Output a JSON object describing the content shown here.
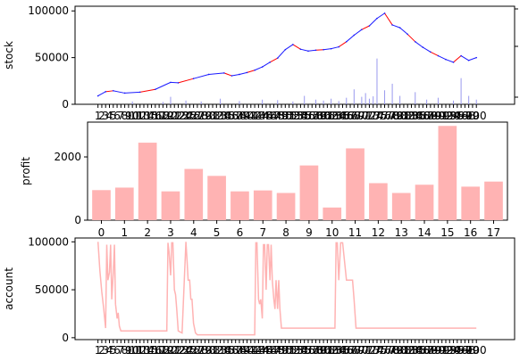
{
  "chart_data": [
    {
      "type": "line",
      "ylabel": "stock",
      "ylim": [
        0,
        105000
      ],
      "yticks": [
        0,
        50000,
        100000
      ],
      "xlim": [
        -5,
        110
      ],
      "xtick_labels": [
        "1",
        "2",
        "3",
        "4",
        "5",
        "6",
        "7",
        "8",
        "9",
        "10",
        "11",
        "12",
        "13",
        "14",
        "15",
        "16",
        "17",
        "18",
        "19",
        "20",
        "21",
        "22",
        "23",
        "24",
        "25",
        "26",
        "27",
        "28",
        "29",
        "30",
        "31",
        "32",
        "33",
        "34",
        "35",
        "36",
        "37",
        "38",
        "39",
        "40",
        "41",
        "42",
        "43",
        "44",
        "45",
        "46",
        "47",
        "48",
        "49",
        "50",
        "51",
        "52",
        "53",
        "54",
        "55",
        "56",
        "57",
        "58",
        "59",
        "60",
        "61",
        "62",
        "63",
        "64",
        "65",
        "66",
        "67",
        "68",
        "69",
        "70",
        "71",
        "72",
        "73",
        "74",
        "75",
        "76",
        "77",
        "78",
        "79",
        "80",
        "81",
        "82",
        "83",
        "84",
        "85",
        "86",
        "87",
        "88",
        "89",
        "90",
        "91",
        "92",
        "93",
        "94",
        "95",
        "96",
        "97",
        "98",
        "99",
        "100"
      ],
      "colors": {
        "price": "#1a1aff",
        "highlight": "#ff0000",
        "volume": "#9999ee"
      },
      "series": [
        {
          "x": [
            1,
            3,
            5,
            8,
            12,
            16,
            20,
            22,
            26,
            30,
            34,
            36,
            38,
            40,
            42,
            44,
            46,
            48,
            50,
            52,
            54,
            56,
            58,
            60,
            62,
            64,
            66,
            68,
            70,
            72,
            74,
            76,
            78,
            80,
            82,
            84,
            86,
            88,
            90,
            92,
            94,
            96,
            98,
            100
          ],
          "values": [
            9000,
            13500,
            14500,
            12000,
            13000,
            16000,
            23500,
            23000,
            27500,
            32000,
            33500,
            30500,
            32000,
            34000,
            36500,
            40000,
            45000,
            49500,
            58500,
            64000,
            59000,
            57000,
            58000,
            58500,
            59500,
            61500,
            67000,
            74000,
            80000,
            84000,
            92000,
            97500,
            85000,
            82000,
            75000,
            67000,
            61000,
            56000,
            52000,
            48000,
            45000,
            52000,
            47000,
            50000
          ]
        }
      ],
      "volume": {
        "x": [
          10,
          18,
          20,
          24,
          28,
          33,
          38,
          44,
          48,
          52,
          55,
          58,
          60,
          62,
          64,
          66,
          68,
          70,
          71,
          72,
          73,
          74,
          76,
          78,
          80,
          84,
          87,
          90,
          94,
          96,
          98,
          100
        ],
        "values": [
          3000,
          2500,
          8000,
          4000,
          3000,
          6000,
          3500,
          5000,
          4500,
          3000,
          9000,
          5000,
          4000,
          6000,
          3500,
          7000,
          16000,
          8000,
          12000,
          6000,
          8500,
          49000,
          15000,
          22000,
          9000,
          13000,
          5000,
          7000,
          4000,
          28000,
          9000,
          5000
        ]
      }
    },
    {
      "type": "bar",
      "ylabel": "profit",
      "ylim": [
        0,
        3100
      ],
      "yticks": [
        0,
        2000
      ],
      "categories": [
        "0",
        "1",
        "2",
        "3",
        "4",
        "5",
        "6",
        "7",
        "8",
        "9",
        "10",
        "11",
        "12",
        "13",
        "14",
        "15",
        "16",
        "17"
      ],
      "values": [
        950,
        1030,
        2450,
        910,
        1620,
        1400,
        910,
        940,
        860,
        1730,
        400,
        2270,
        1170,
        860,
        1120,
        2980,
        1060,
        1220
      ],
      "colors": {
        "bar": "#ffb3b3"
      }
    },
    {
      "type": "line",
      "ylabel": "account",
      "ylim": [
        -2000,
        104000
      ],
      "yticks": [
        0,
        50000,
        100000
      ],
      "xlim": [
        -5,
        110
      ],
      "xtick_labels": [
        "1",
        "2",
        "3",
        "4",
        "5",
        "6",
        "7",
        "8",
        "9",
        "10",
        "11",
        "12",
        "13",
        "14",
        "15",
        "16",
        "17",
        "18",
        "19",
        "20",
        "21",
        "22",
        "23",
        "24",
        "25",
        "26",
        "27",
        "28",
        "29",
        "30",
        "31",
        "32",
        "33",
        "34",
        "35",
        "36",
        "37",
        "38",
        "39",
        "40",
        "41",
        "42",
        "43",
        "44",
        "45",
        "46",
        "47",
        "48",
        "49",
        "50",
        "51",
        "52",
        "53",
        "54",
        "55",
        "56",
        "57",
        "58",
        "59",
        "60",
        "61",
        "62",
        "63",
        "64",
        "65",
        "66",
        "67",
        "68",
        "69",
        "70",
        "71",
        "72",
        "73",
        "74",
        "75",
        "76",
        "77",
        "78",
        "79",
        "80",
        "81",
        "82",
        "83",
        "84",
        "85",
        "86",
        "87",
        "88",
        "89",
        "90",
        "91",
        "92",
        "93",
        "94",
        "95",
        "96",
        "97",
        "98",
        "99",
        "100"
      ],
      "colors": {
        "line": "#ffb3b3"
      },
      "series": [
        {
          "x": [
            1,
            1.5,
            2,
            2.5,
            3,
            3.3,
            3.6,
            4,
            4.3,
            4.6,
            5,
            5.3,
            5.6,
            6,
            6.3,
            6.6,
            7,
            7.5,
            8,
            12,
            16,
            19,
            19.3,
            19.6,
            20,
            20.3,
            20.6,
            21,
            21.3,
            21.6,
            22,
            23,
            24,
            24.3,
            24.6,
            25,
            25.3,
            25.6,
            26,
            26.5,
            27,
            30,
            35,
            40,
            42,
            42.3,
            42.6,
            43,
            43.3,
            43.6,
            44,
            44.3,
            44.6,
            45,
            45.3,
            45.6,
            46,
            46.3,
            46.6,
            47,
            47.3,
            47.6,
            48,
            48.3,
            48.6,
            49,
            50,
            55,
            60,
            63,
            63.3,
            63.6,
            64,
            64.5,
            65,
            66,
            67,
            67.3,
            67.6,
            68,
            68.5,
            69,
            70,
            75,
            80,
            85,
            90,
            95,
            100
          ],
          "values": [
            100000,
            70000,
            48000,
            30000,
            10000,
            97000,
            60000,
            68000,
            97000,
            40000,
            68000,
            97000,
            35000,
            20000,
            26000,
            12000,
            7000,
            7000,
            7000,
            7000,
            7000,
            7000,
            99000,
            90000,
            65000,
            99000,
            99000,
            50000,
            45000,
            30000,
            7000,
            5000,
            100000,
            80000,
            60000,
            60000,
            40000,
            40000,
            15000,
            5000,
            3000,
            3000,
            3000,
            3000,
            3000,
            99000,
            99000,
            40000,
            35000,
            40000,
            20000,
            97000,
            97000,
            50000,
            97000,
            97000,
            60000,
            97000,
            60000,
            40000,
            30000,
            60000,
            30000,
            60000,
            30000,
            10000,
            10000,
            10000,
            10000,
            10000,
            99000,
            99000,
            60000,
            99000,
            99000,
            60000,
            60000,
            60000,
            60000,
            40000,
            10000,
            10000,
            10000,
            10000,
            10000,
            10000,
            10000,
            10000,
            10000
          ]
        }
      ]
    }
  ]
}
